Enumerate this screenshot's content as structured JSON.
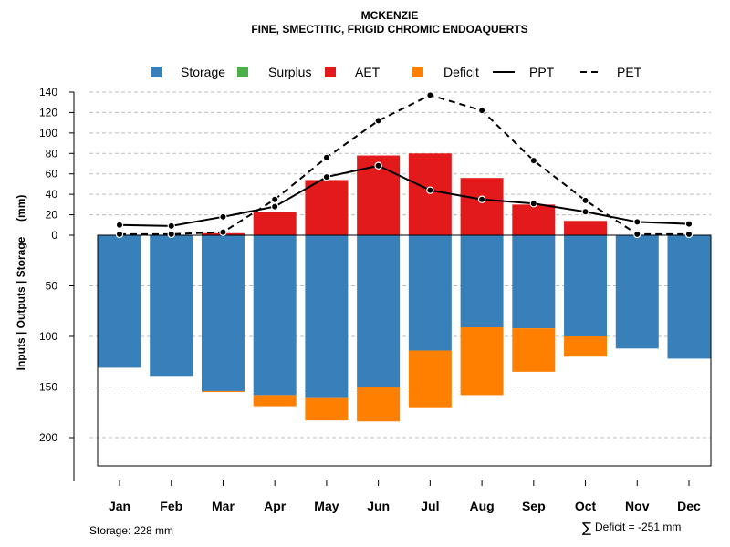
{
  "chart_data": {
    "type": "bar",
    "title": "MCKENZIE",
    "subtitle": "FINE, SMECTITIC, FRIGID CHROMIC ENDOAQUERTS",
    "ylabel": "Inputs | Outputs | Storage     (mm)",
    "categories": [
      "Jan",
      "Feb",
      "Mar",
      "Apr",
      "May",
      "Jun",
      "Jul",
      "Aug",
      "Sep",
      "Oct",
      "Nov",
      "Dec"
    ],
    "upper_ylim": [
      0,
      140
    ],
    "upper_ticks": [
      "0",
      "20",
      "40",
      "60",
      "80",
      "100",
      "120",
      "140"
    ],
    "lower_ylim": [
      0,
      228
    ],
    "lower_ticks": [
      "50",
      "100",
      "150",
      "200"
    ],
    "legend": {
      "position": "top",
      "items": [
        {
          "label": "Storage",
          "kind": "box",
          "color": "#3880ba"
        },
        {
          "label": "Surplus",
          "kind": "box",
          "color": "#4daf4a"
        },
        {
          "label": "AET",
          "kind": "box",
          "color": "#e31a1c"
        },
        {
          "label": "Deficit",
          "kind": "box",
          "color": "#ff8000"
        },
        {
          "label": "PPT",
          "kind": "solid-line",
          "color": "#000000"
        },
        {
          "label": "PET",
          "kind": "dashed-line",
          "color": "#000000"
        }
      ]
    },
    "series": [
      {
        "name": "AET",
        "color": "#e31a1c",
        "values": [
          0,
          0,
          2,
          23,
          54,
          78,
          80,
          56,
          30,
          14,
          0,
          0
        ]
      },
      {
        "name": "Surplus",
        "color": "#4daf4a",
        "values": [
          0,
          0,
          0,
          0,
          0,
          0,
          0,
          0,
          0,
          0,
          0,
          0
        ]
      },
      {
        "name": "Storage",
        "color": "#3880ba",
        "values": [
          131,
          139,
          154,
          158,
          161,
          150,
          114,
          91,
          92,
          100,
          112,
          122
        ]
      },
      {
        "name": "Deficit",
        "color": "#ff8000",
        "values": [
          0,
          0,
          1,
          11,
          22,
          34,
          56,
          67,
          43,
          20,
          0,
          0
        ]
      },
      {
        "name": "PPT",
        "color": "#000000",
        "values": [
          10,
          9,
          18,
          28,
          57,
          68,
          44,
          35,
          31,
          23,
          13,
          11
        ]
      },
      {
        "name": "PET",
        "color": "#000000",
        "values": [
          1,
          1,
          3,
          35,
          76,
          112,
          137,
          122,
          73,
          34,
          1,
          1
        ]
      }
    ]
  },
  "footer": {
    "storage_note": "Storage: 228 mm",
    "deficit_symbol": "∑",
    "deficit_note": "Deficit = -251 mm"
  }
}
